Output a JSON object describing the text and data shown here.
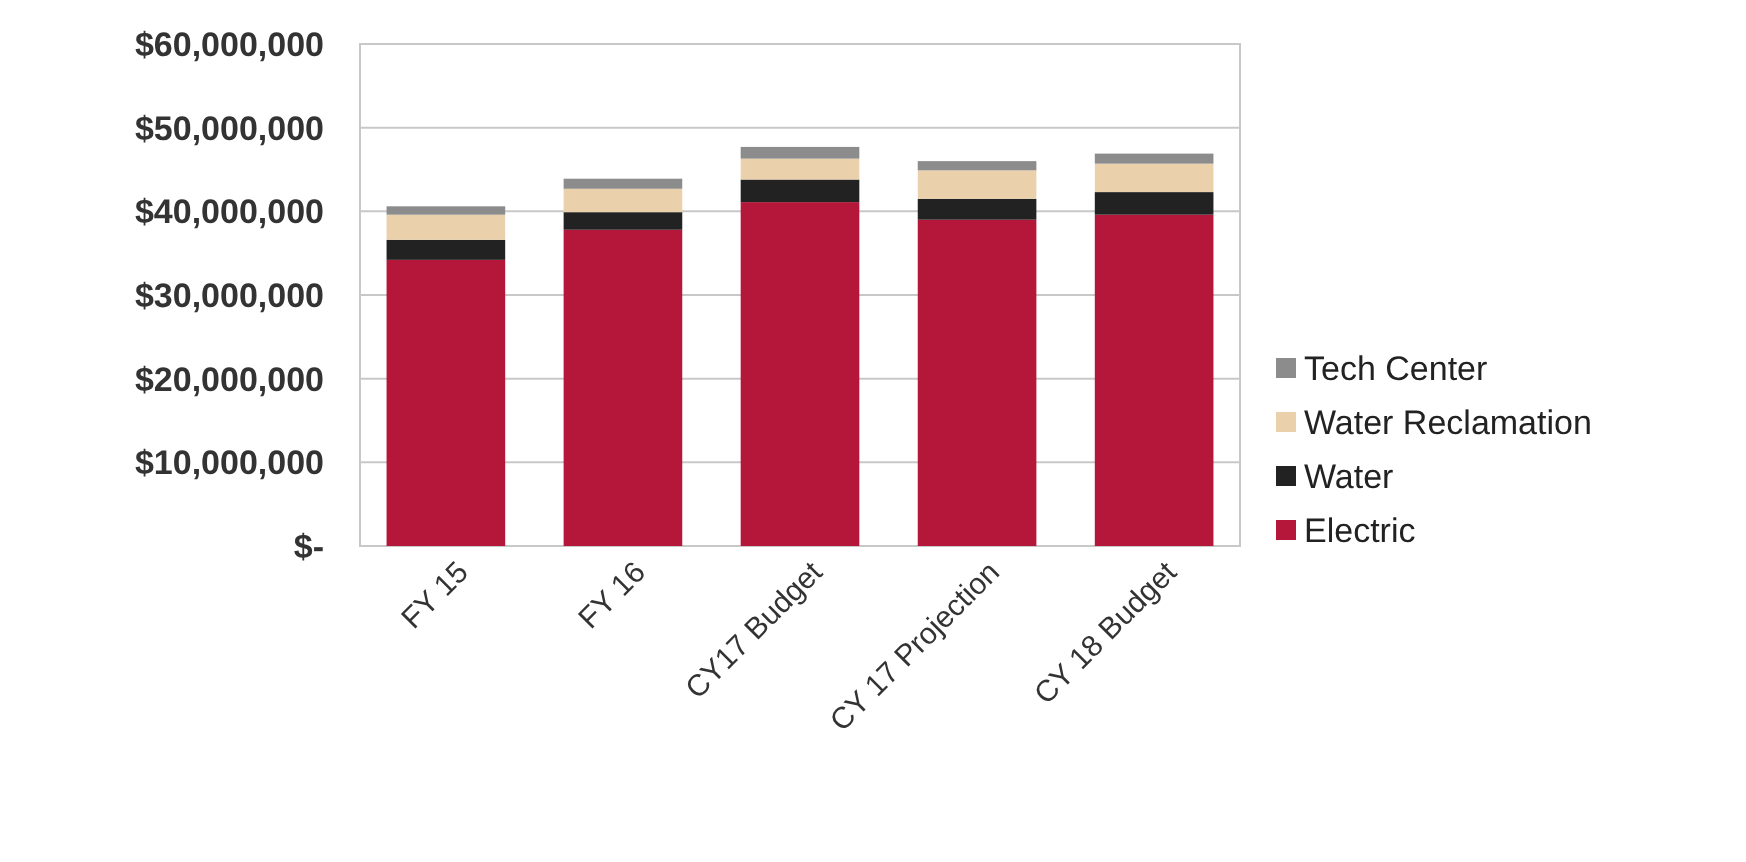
{
  "chart_data": {
    "type": "bar",
    "stacked": true,
    "categories": [
      "FY 15",
      "FY 16",
      "CY17 Budget",
      "CY 17 Projection",
      "CY 18 Budget"
    ],
    "series": [
      {
        "name": "Electric",
        "color": "#b5173a",
        "values": [
          34200000,
          37800000,
          41100000,
          39000000,
          39600000
        ]
      },
      {
        "name": "Water",
        "color": "#222222",
        "values": [
          2400000,
          2100000,
          2700000,
          2500000,
          2700000
        ]
      },
      {
        "name": "Water Reclamation",
        "color": "#ead1ac",
        "values": [
          3000000,
          2800000,
          2500000,
          3400000,
          3400000
        ]
      },
      {
        "name": "Tech Center",
        "color": "#8c8c8c",
        "values": [
          1000000,
          1200000,
          1400000,
          1100000,
          1200000
        ]
      }
    ],
    "ylim": [
      0,
      60000000
    ],
    "yticks": [
      {
        "value": 0,
        "label": "$-"
      },
      {
        "value": 10000000,
        "label": "$10,000,000"
      },
      {
        "value": 20000000,
        "label": "$20,000,000"
      },
      {
        "value": 30000000,
        "label": "$30,000,000"
      },
      {
        "value": 40000000,
        "label": "$40,000,000"
      },
      {
        "value": 50000000,
        "label": "$50,000,000"
      },
      {
        "value": 60000000,
        "label": "$60,000,000"
      }
    ],
    "grid": "y",
    "legend": "right"
  }
}
